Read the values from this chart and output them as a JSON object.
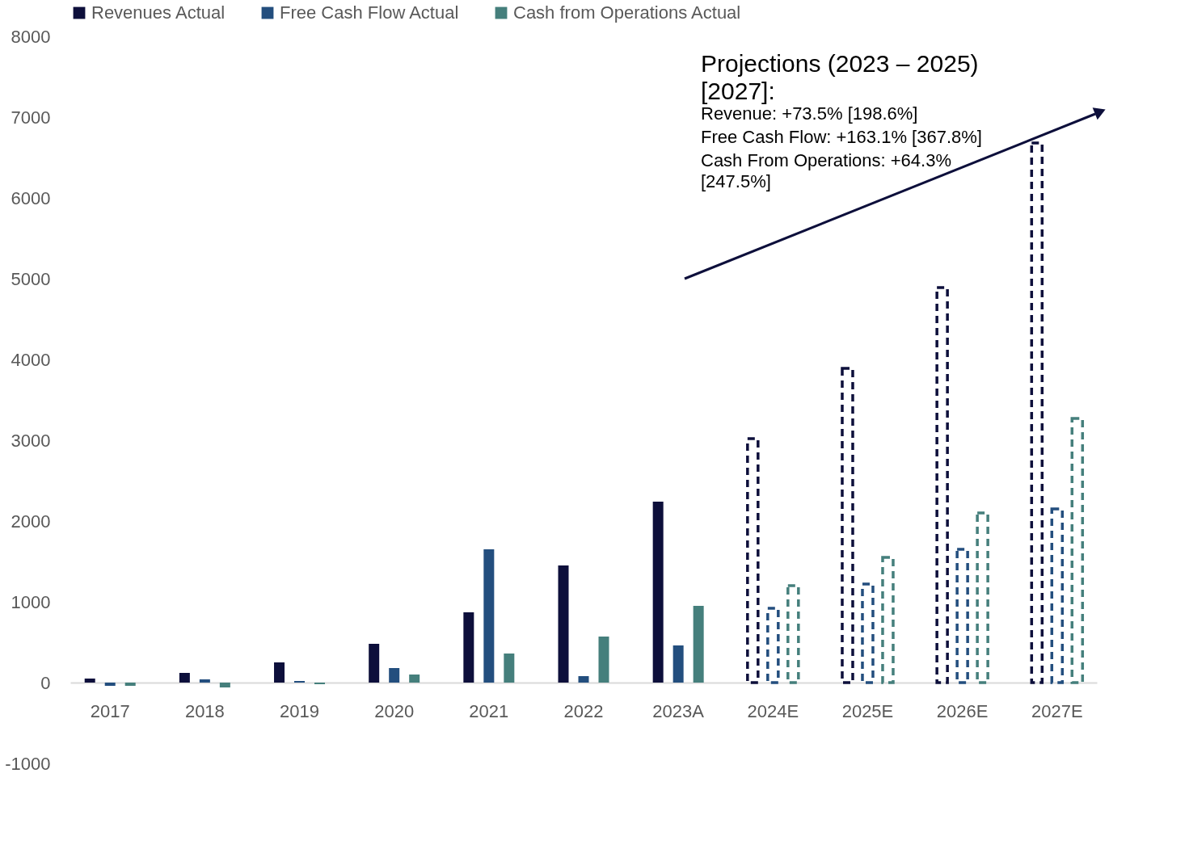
{
  "chart_data": {
    "type": "bar",
    "categories": [
      "2017",
      "2018",
      "2019",
      "2020",
      "2021",
      "2022",
      "2023A",
      "2024E",
      "2025E",
      "2026E",
      "2027E"
    ],
    "series": [
      {
        "name": "Revenues Actual",
        "color": "#0d0f3b",
        "values": [
          50,
          120,
          250,
          480,
          870,
          1450,
          2240,
          null,
          null,
          null,
          null
        ]
      },
      {
        "name": "Free Cash Flow Actual",
        "color": "#234e7e",
        "values": [
          -40,
          40,
          20,
          180,
          1650,
          80,
          460,
          null,
          null,
          null,
          null
        ]
      },
      {
        "name": "Cash from Operations Actual",
        "color": "#457f7c",
        "values": [
          -40,
          -60,
          -20,
          100,
          360,
          570,
          950,
          null,
          null,
          null,
          null
        ]
      },
      {
        "color": "#0d0f3b",
        "line_style": "dashed",
        "values": [
          null,
          null,
          null,
          null,
          null,
          null,
          null,
          3020,
          3890,
          4890,
          6680
        ]
      },
      {
        "color": "#234e7e",
        "line_style": "dashed",
        "values": [
          null,
          null,
          null,
          null,
          null,
          null,
          null,
          920,
          1220,
          1650,
          2150
        ]
      },
      {
        "color": "#457f7c",
        "line_style": "dashed",
        "values": [
          null,
          null,
          null,
          null,
          null,
          null,
          null,
          1200,
          1550,
          2100,
          3270
        ]
      }
    ],
    "ylim": [
      -1000,
      8000
    ],
    "yticks": [
      -1000,
      0,
      1000,
      2000,
      3000,
      4000,
      5000,
      6000,
      7000,
      8000
    ],
    "grid": false,
    "legend": "top",
    "annotations": [
      "Projections (2023 – 2025) [2027]:",
      "Revenue: +73.5% [198.6%]",
      "Free Cash Flow: +163.1% [367.8%]",
      "Cash From Operations: +64.3% [247.5%]"
    ]
  }
}
